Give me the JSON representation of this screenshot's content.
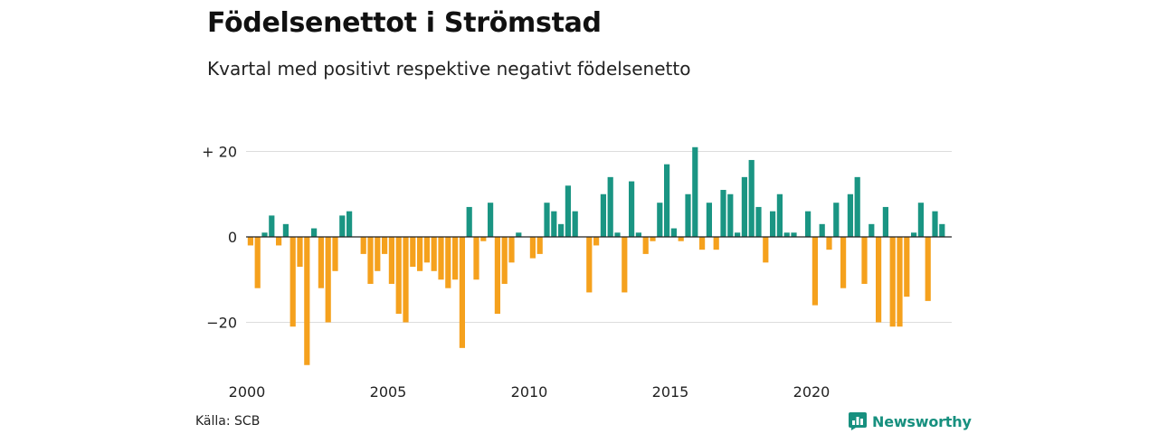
{
  "header": {
    "title": "Födelsenettot i Strömstad",
    "subtitle": "Kvartal med positivt respektive negativt födelsenetto"
  },
  "footer": {
    "source": "Källa: SCB",
    "brand": "Newsworthy"
  },
  "colors": {
    "positive": "#1a9583",
    "negative": "#f5a11d",
    "grid": "#dddddd",
    "zero_line": "#222222",
    "brand": "#17907f"
  },
  "chart_data": {
    "type": "bar",
    "title": "Födelsenettot i Strömstad",
    "subtitle": "Kvartal med positivt respektive negativt födelsenetto",
    "xlabel": "",
    "ylabel": "",
    "ylim": [
      -32,
      22
    ],
    "y_ticks": [
      {
        "value": 20,
        "label": "+ 20"
      },
      {
        "value": 0,
        "label": "0"
      },
      {
        "value": -20,
        "label": "−20"
      }
    ],
    "x_ticks": [
      {
        "value": 2000,
        "label": "2000"
      },
      {
        "value": 2005,
        "label": "2005"
      },
      {
        "value": 2010,
        "label": "2010"
      },
      {
        "value": 2015,
        "label": "2015"
      },
      {
        "value": 2020,
        "label": "2020"
      }
    ],
    "grid": true,
    "legend": "none",
    "start_period": "2000 Q1",
    "periods": [
      "2000 Q1",
      "2000 Q2",
      "2000 Q3",
      "2000 Q4",
      "2001 Q1",
      "2001 Q2",
      "2001 Q3",
      "2001 Q4",
      "2002 Q1",
      "2002 Q2",
      "2002 Q3",
      "2002 Q4",
      "2003 Q1",
      "2003 Q2",
      "2003 Q3",
      "2003 Q4",
      "2004 Q1",
      "2004 Q2",
      "2004 Q3",
      "2004 Q4",
      "2005 Q1",
      "2005 Q2",
      "2005 Q3",
      "2005 Q4",
      "2006 Q1",
      "2006 Q2",
      "2006 Q3",
      "2006 Q4",
      "2007 Q1",
      "2007 Q2",
      "2007 Q3",
      "2007 Q4",
      "2008 Q1",
      "2008 Q2",
      "2008 Q3",
      "2008 Q4",
      "2009 Q1",
      "2009 Q2",
      "2009 Q3",
      "2009 Q4",
      "2010 Q1",
      "2010 Q2",
      "2010 Q3",
      "2010 Q4",
      "2011 Q1",
      "2011 Q2",
      "2011 Q3",
      "2011 Q4",
      "2012 Q1",
      "2012 Q2",
      "2012 Q3",
      "2012 Q4",
      "2013 Q1",
      "2013 Q2",
      "2013 Q3",
      "2013 Q4",
      "2014 Q1",
      "2014 Q2",
      "2014 Q3",
      "2014 Q4",
      "2015 Q1",
      "2015 Q2",
      "2015 Q3",
      "2015 Q4",
      "2016 Q1",
      "2016 Q2",
      "2016 Q3",
      "2016 Q4",
      "2017 Q1",
      "2017 Q2",
      "2017 Q3",
      "2017 Q4",
      "2018 Q1",
      "2018 Q2",
      "2018 Q3",
      "2018 Q4",
      "2019 Q1",
      "2019 Q2",
      "2019 Q3",
      "2019 Q4",
      "2020 Q1",
      "2020 Q2",
      "2020 Q3",
      "2020 Q4",
      "2021 Q1",
      "2021 Q2",
      "2021 Q3",
      "2021 Q4",
      "2022 Q1",
      "2022 Q2",
      "2022 Q3",
      "2022 Q4",
      "2023 Q1",
      "2023 Q2",
      "2023 Q3",
      "2023 Q4",
      "2024 Q1",
      "2024 Q2",
      "2024 Q3",
      "2024 Q4"
    ],
    "values": [
      -2,
      -12,
      1,
      5,
      -2,
      3,
      -21,
      -7,
      -30,
      2,
      -12,
      -20,
      -8,
      5,
      6,
      0,
      -4,
      -11,
      -8,
      -4,
      -11,
      -18,
      -20,
      -7,
      -8,
      -6,
      -8,
      -10,
      -12,
      -10,
      -26,
      7,
      -10,
      -1,
      8,
      -18,
      -11,
      -6,
      1,
      0,
      -5,
      -4,
      8,
      6,
      3,
      12,
      6,
      0,
      -13,
      -2,
      10,
      14,
      1,
      -13,
      13,
      1,
      -4,
      -1,
      8,
      17,
      2,
      -1,
      10,
      21,
      -3,
      8,
      -3,
      11,
      10,
      1,
      14,
      18,
      7,
      -6,
      6,
      10,
      1,
      1,
      0,
      6,
      -16,
      3,
      -3,
      8,
      -12,
      10,
      14,
      -11,
      3,
      -20,
      7,
      -21,
      -21,
      -14,
      1,
      8,
      -15,
      6,
      3,
      0
    ]
  }
}
